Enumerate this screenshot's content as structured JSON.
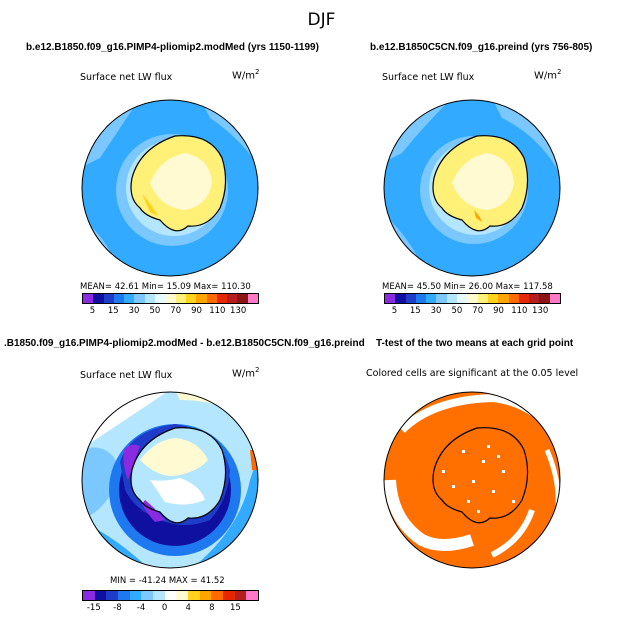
{
  "title": "DJF",
  "panels": [
    {
      "title": "b.e12.B1850.f09_g16.PIMP4-pliomip2.modMed (yrs 1150-1199)",
      "variable": "Surface net LW flux",
      "units": "W/m",
      "units_sup": "2",
      "stats": "MEAN=  42.61   Min=   15.09   Max= 110.30",
      "colorbar": {
        "colors": [
          "#8a2be2",
          "#1010a0",
          "#1e3cc8",
          "#1e78f0",
          "#32aaff",
          "#7ac8ff",
          "#b4e6ff",
          "#e6fbff",
          "#fffad2",
          "#fff078",
          "#ffd21e",
          "#ffa500",
          "#ff6a00",
          "#e62800",
          "#b41e1e",
          "#8c1414",
          "#ff78c8"
        ],
        "labels": [
          "5",
          "15",
          "30",
          "50",
          "70",
          "90",
          "110",
          "130"
        ]
      }
    },
    {
      "title": "b.e12.B1850C5CN.f09_g16.preind (yrs 756-805)",
      "variable": "Surface net LW flux",
      "units": "W/m",
      "units_sup": "2",
      "stats": "MEAN=  45.50   Min=   26.00   Max= 117.58",
      "colorbar": {
        "colors": [
          "#8a2be2",
          "#1010a0",
          "#1e3cc8",
          "#1e78f0",
          "#32aaff",
          "#7ac8ff",
          "#b4e6ff",
          "#e6fbff",
          "#fffad2",
          "#fff078",
          "#ffd21e",
          "#ffa500",
          "#ff6a00",
          "#e62800",
          "#b41e1e",
          "#8c1414",
          "#ff78c8"
        ],
        "labels": [
          "5",
          "15",
          "30",
          "50",
          "70",
          "90",
          "110",
          "130"
        ]
      }
    },
    {
      "title": ".B1850.f09_g16.PIMP4-pliomip2.modMed - b.e12.B1850C5CN.f09_g16.preind",
      "variable": "Surface net LW flux",
      "units": "W/m",
      "units_sup": "2",
      "stats": "MIN = -41.24  MAX =  41.52",
      "colorbar": {
        "colors": [
          "#8a2be2",
          "#1010a0",
          "#1e3cc8",
          "#1e78f0",
          "#32aaff",
          "#7ac8ff",
          "#b4e6ff",
          "#ffffff",
          "#fffad2",
          "#ffd21e",
          "#ffa500",
          "#ff6a00",
          "#e62800",
          "#b41e1e",
          "#ff78c8"
        ],
        "labels": [
          "-15",
          "-8",
          "-4",
          "0",
          "4",
          "8",
          "15"
        ]
      }
    },
    {
      "title": "T-test of the two means at each grid point",
      "variable": "Colored cells are significant at the 0.05 level"
    }
  ],
  "colors": {
    "ocean_blue": "#32aaff",
    "ice_yellow": "#fff078",
    "significant_orange": "#ff7000"
  }
}
